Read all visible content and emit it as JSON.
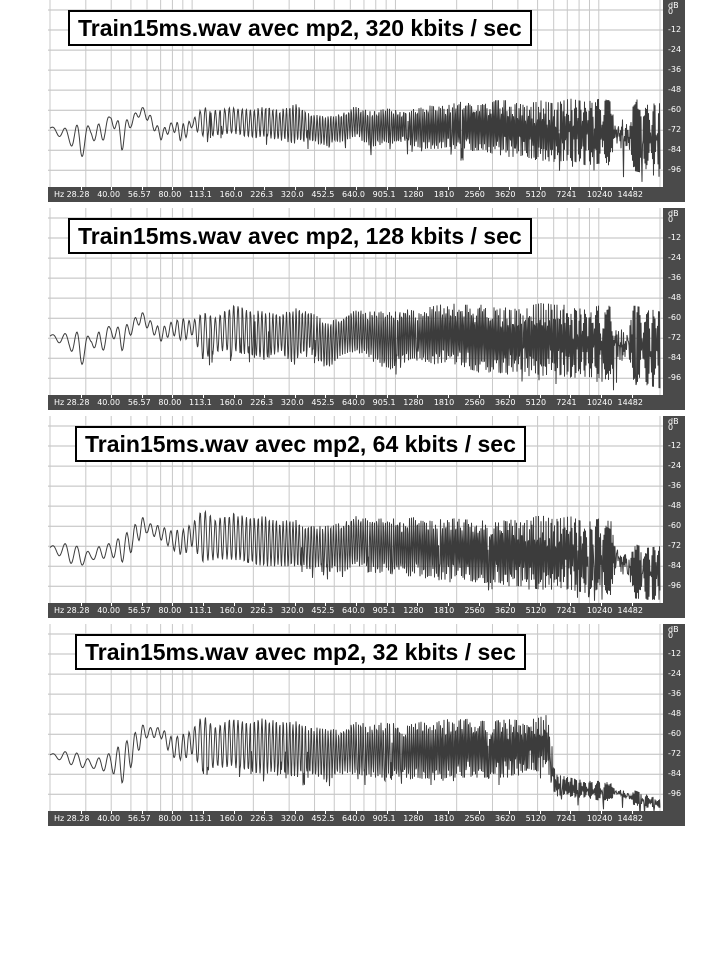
{
  "chart_data": [
    {
      "type": "line",
      "title": "Train15ms.wav avec mp2, 320 kbits / sec",
      "x_unit_label": "Hz",
      "x_tick_labels": [
        "28.28",
        "40.00",
        "56.57",
        "80.00",
        "113.1",
        "160.0",
        "226.3",
        "320.0",
        "452.5",
        "640.0",
        "905.1",
        "1280",
        "1810",
        "2560",
        "3620",
        "5120",
        "7241",
        "10240",
        "14482"
      ],
      "y_unit_label": "dB",
      "y_tick_labels": [
        "0",
        "-12",
        "-24",
        "-36",
        "-48",
        "-60",
        "-72",
        "-84",
        "-96"
      ],
      "ylim": [
        -106,
        6
      ],
      "series": [
        {
          "x": [
            20,
            25,
            28.28,
            32,
            35,
            40,
            45,
            50,
            56.57,
            60,
            70,
            80,
            90,
            100,
            113.1,
            130,
            160,
            190,
            226.3,
            270,
            320,
            380,
            452.5,
            540,
            640,
            760,
            905.1,
            1100,
            1280,
            1500,
            1810,
            2200,
            2560,
            3000,
            3620,
            4300,
            5120,
            6000,
            7241,
            8600,
            10240,
            12300,
            14482,
            17000,
            20000
          ],
          "upper": [
            -70,
            -71,
            -68,
            -70,
            -68,
            -63,
            -68,
            -64,
            -58,
            -60,
            -72,
            -67,
            -68,
            -66,
            -58,
            -60,
            -58,
            -60,
            -58,
            -60,
            -56,
            -62,
            -64,
            -62,
            -57,
            -61,
            -59,
            -60,
            -59,
            -57,
            -57,
            -54,
            -55,
            -54,
            -54,
            -57,
            -54,
            -56,
            -53,
            -55,
            -53,
            -55,
            -54,
            -53,
            -56
          ],
          "lower": [
            -72,
            -80,
            -90,
            -76,
            -84,
            -66,
            -85,
            -70,
            -62,
            -66,
            -78,
            -72,
            -80,
            -70,
            -76,
            -75,
            -74,
            -76,
            -76,
            -78,
            -80,
            -78,
            -82,
            -79,
            -76,
            -82,
            -80,
            -80,
            -82,
            -84,
            -82,
            -85,
            -84,
            -86,
            -88,
            -88,
            -90,
            -91,
            -90,
            -93,
            -92,
            -94,
            -96,
            -98,
            -100
          ]
        }
      ]
    },
    {
      "type": "line",
      "title": "Train15ms.wav avec mp2, 128 kbits / sec",
      "x_unit_label": "Hz",
      "x_tick_labels": [
        "28.28",
        "40.00",
        "56.57",
        "80.00",
        "113.1",
        "160.0",
        "226.3",
        "320.0",
        "452.5",
        "640.0",
        "905.1",
        "1280",
        "1810",
        "2560",
        "3620",
        "5120",
        "7241",
        "10240",
        "14482"
      ],
      "y_unit_label": "dB",
      "y_tick_labels": [
        "0",
        "-12",
        "-24",
        "-36",
        "-48",
        "-60",
        "-72",
        "-84",
        "-96"
      ],
      "ylim": [
        -106,
        6
      ],
      "series": [
        {
          "x": [
            20,
            25,
            28.28,
            32,
            35,
            40,
            45,
            50,
            56.57,
            60,
            70,
            80,
            90,
            100,
            113.1,
            130,
            160,
            190,
            226.3,
            270,
            320,
            380,
            452.5,
            540,
            640,
            760,
            905.1,
            1100,
            1280,
            1500,
            1810,
            2200,
            2560,
            3000,
            3620,
            4300,
            5120,
            6000,
            7241,
            8600,
            10240,
            12300,
            14482,
            17000,
            20000
          ],
          "upper": [
            -70,
            -69,
            -68,
            -72,
            -68,
            -64,
            -66,
            -62,
            -56,
            -60,
            -66,
            -62,
            -60,
            -62,
            -56,
            -60,
            -52,
            -55,
            -56,
            -58,
            -54,
            -56,
            -62,
            -60,
            -55,
            -56,
            -56,
            -54,
            -56,
            -53,
            -51,
            -52,
            -52,
            -52,
            -54,
            -55,
            -50,
            -52,
            -52,
            -55,
            -52,
            -53,
            -52,
            -54,
            -56
          ],
          "lower": [
            -72,
            -78,
            -90,
            -75,
            -84,
            -70,
            -80,
            -70,
            -62,
            -66,
            -74,
            -70,
            -74,
            -70,
            -85,
            -80,
            -80,
            -82,
            -85,
            -80,
            -88,
            -78,
            -92,
            -82,
            -80,
            -85,
            -92,
            -86,
            -84,
            -88,
            -86,
            -90,
            -92,
            -92,
            -94,
            -92,
            -95,
            -93,
            -96,
            -95,
            -96,
            -98,
            -98,
            -100,
            -102
          ]
        }
      ]
    },
    {
      "type": "line",
      "title": "Train15ms.wav avec mp2, 64 kbits / sec",
      "x_unit_label": "Hz",
      "x_tick_labels": [
        "28.28",
        "40.00",
        "56.57",
        "80.00",
        "113.1",
        "160.0",
        "226.3",
        "320.0",
        "452.5",
        "640.0",
        "905.1",
        "1280",
        "1810",
        "2560",
        "3620",
        "5120",
        "7241",
        "10240",
        "14482"
      ],
      "y_unit_label": "dB",
      "y_tick_labels": [
        "0",
        "-12",
        "-24",
        "-36",
        "-48",
        "-60",
        "-72",
        "-84",
        "-96"
      ],
      "ylim": [
        -106,
        6
      ],
      "series": [
        {
          "x": [
            20,
            25,
            28.28,
            32,
            35,
            40,
            45,
            50,
            56.57,
            60,
            70,
            80,
            90,
            100,
            113.1,
            130,
            160,
            190,
            226.3,
            270,
            320,
            380,
            452.5,
            540,
            640,
            760,
            905.1,
            1100,
            1280,
            1500,
            1810,
            2200,
            2560,
            3000,
            3620,
            4300,
            5120,
            6000,
            7241,
            8600,
            10240,
            12300,
            14482,
            17000,
            20000
          ],
          "upper": [
            -72,
            -70,
            -73,
            -76,
            -72,
            -70,
            -66,
            -62,
            -54,
            -58,
            -60,
            -63,
            -62,
            -58,
            -50,
            -56,
            -52,
            -55,
            -54,
            -57,
            -56,
            -60,
            -60,
            -58,
            -54,
            -56,
            -55,
            -56,
            -54,
            -57,
            -55,
            -56,
            -56,
            -58,
            -56,
            -57,
            -53,
            -56,
            -54,
            -58,
            -55,
            -57,
            -70,
            -73,
            -72
          ],
          "lower": [
            -74,
            -82,
            -84,
            -80,
            -80,
            -78,
            -82,
            -76,
            -66,
            -64,
            -68,
            -74,
            -78,
            -72,
            -82,
            -80,
            -80,
            -82,
            -84,
            -84,
            -84,
            -86,
            -86,
            -88,
            -84,
            -88,
            -88,
            -90,
            -90,
            -92,
            -92,
            -92,
            -94,
            -94,
            -96,
            -96,
            -98,
            -98,
            -98,
            -100,
            -100,
            -102,
            -103,
            -104,
            -104
          ]
        }
      ]
    },
    {
      "type": "line",
      "title": "Train15ms.wav avec mp2, 32 kbits / sec",
      "x_unit_label": "Hz",
      "x_tick_labels": [
        "28.28",
        "40.00",
        "56.57",
        "80.00",
        "113.1",
        "160.0",
        "226.3",
        "320.0",
        "452.5",
        "640.0",
        "905.1",
        "1280",
        "1810",
        "2560",
        "3620",
        "5120",
        "7241",
        "10240",
        "14482"
      ],
      "y_unit_label": "dB",
      "y_tick_labels": [
        "0",
        "-12",
        "-24",
        "-36",
        "-48",
        "-60",
        "-72",
        "-84",
        "-96"
      ],
      "ylim": [
        -106,
        6
      ],
      "series": [
        {
          "x": [
            20,
            25,
            28.28,
            32,
            35,
            40,
            45,
            50,
            56.57,
            60,
            70,
            80,
            90,
            100,
            113.1,
            130,
            160,
            190,
            226.3,
            270,
            320,
            380,
            452.5,
            540,
            640,
            760,
            905.1,
            1100,
            1280,
            1500,
            1810,
            2200,
            2560,
            3000,
            3620,
            4300,
            5120,
            5500,
            5800,
            6100,
            7241,
            8600,
            10240,
            12300,
            14482,
            17000,
            20000
          ],
          "upper": [
            -72,
            -70,
            -72,
            -76,
            -74,
            -71,
            -66,
            -62,
            -54,
            -56,
            -56,
            -62,
            -60,
            -58,
            -48,
            -56,
            -50,
            -54,
            -50,
            -53,
            -52,
            -56,
            -56,
            -58,
            -52,
            -55,
            -52,
            -55,
            -52,
            -54,
            -50,
            -51,
            -50,
            -52,
            -51,
            -52,
            -50,
            -48,
            -60,
            -84,
            -86,
            -88,
            -88,
            -90,
            -93,
            -96,
            -99
          ],
          "lower": [
            -73,
            -78,
            -80,
            -80,
            -82,
            -82,
            -90,
            -80,
            -66,
            -62,
            -62,
            -74,
            -76,
            -72,
            -82,
            -80,
            -80,
            -82,
            -84,
            -82,
            -86,
            -84,
            -88,
            -84,
            -84,
            -86,
            -86,
            -88,
            -86,
            -88,
            -86,
            -86,
            -86,
            -86,
            -86,
            -84,
            -82,
            -78,
            -88,
            -98,
            -98,
            -98,
            -100,
            -100,
            -102,
            -104,
            -104
          ]
        }
      ]
    }
  ]
}
